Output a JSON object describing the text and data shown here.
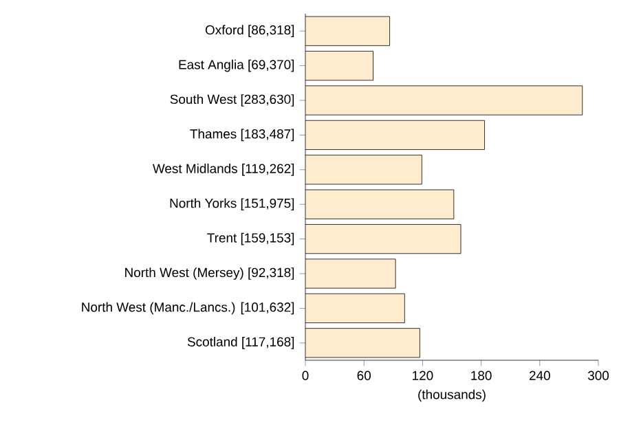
{
  "chart_data": {
    "type": "bar",
    "orientation": "horizontal",
    "xlabel": "(thousands)",
    "categories": [
      "Oxford [86,318]",
      "East Anglia [69,370]",
      "South West [283,630]",
      "Thames [183,487]",
      "West Midlands [119,262]",
      "North Yorks [151,975]",
      "Trent [159,153]",
      "North West (Mersey) [92,318]",
      "North West (Manc./Lancs.) [101,632]",
      "Scotland [117,168]"
    ],
    "values": [
      86.318,
      69.37,
      283.63,
      183.487,
      119.262,
      151.975,
      159.153,
      92.318,
      101.632,
      117.168
    ],
    "color": "#ffebcd",
    "xlim": [
      0,
      300
    ],
    "xticks": [
      0,
      60,
      120,
      180,
      240,
      300
    ]
  }
}
